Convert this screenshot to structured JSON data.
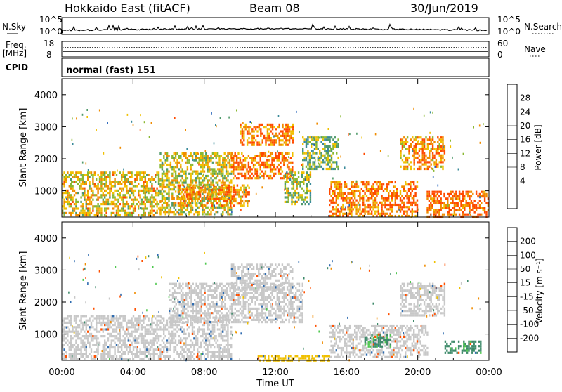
{
  "header": {
    "station": "Hokkaido East (fitACF)",
    "beam": "Beam 08",
    "date": "30/Jun/2019"
  },
  "strip": {
    "nsky_label": "N.Sky",
    "nsky_ticks": [
      "10^5",
      "10^0"
    ],
    "nsearch_label": "N.Search",
    "nsearch_ticks": [
      "10^5",
      "10^0"
    ],
    "freq_label": "Freq.",
    "freq_unit": "[MHz]",
    "freq_ticks": [
      "18",
      "8"
    ],
    "nave_label": "Nave",
    "nave_ticks": [
      "60",
      "0"
    ],
    "cpid_label": "CPID",
    "cpid_text": "normal (fast) 151"
  },
  "chart_data": [
    {
      "type": "heatmap",
      "panel": "power",
      "ylabel": "Slant Range [km]",
      "xlabel": "",
      "yticks": [
        1000,
        2000,
        3000,
        4000
      ],
      "ylim": [
        180,
        4500
      ],
      "xticks": [
        "00:00",
        "04:00",
        "08:00",
        "12:00",
        "16:00",
        "20:00",
        "00:00"
      ],
      "xlim_hours": [
        0,
        24
      ],
      "colorbar": {
        "label": "Power [dB]",
        "ticks": [
          "4",
          "8",
          "12",
          "16",
          "20",
          "24",
          "28"
        ],
        "colors": [
          "#0000ff",
          "#1f5fb8",
          "#3a8a9a",
          "#4f9a6a",
          "#8ab832",
          "#f0c000",
          "#f08c00",
          "#ff4a00",
          "#ff0000"
        ]
      },
      "regions": [
        {
          "x": [
            0.0,
            5.5
          ],
          "y": [
            250,
            1600
          ],
          "value": 22
        },
        {
          "x": [
            5.5,
            9.5
          ],
          "y": [
            300,
            2200
          ],
          "value": 20
        },
        {
          "x": [
            6.5,
            10.5
          ],
          "y": [
            500,
            1200
          ],
          "value": 26
        },
        {
          "x": [
            9.5,
            13.0
          ],
          "y": [
            1400,
            2200
          ],
          "value": 28
        },
        {
          "x": [
            10.0,
            13.0
          ],
          "y": [
            2400,
            3100
          ],
          "value": 27
        },
        {
          "x": [
            12.5,
            14.0
          ],
          "y": [
            600,
            1600
          ],
          "value": 18
        },
        {
          "x": [
            13.5,
            15.5
          ],
          "y": [
            1700,
            2700
          ],
          "value": 16
        },
        {
          "x": [
            15.0,
            20.0
          ],
          "y": [
            200,
            1300
          ],
          "value": 28
        },
        {
          "x": [
            19.0,
            21.5
          ],
          "y": [
            1700,
            2700
          ],
          "value": 26
        },
        {
          "x": [
            20.5,
            24.0
          ],
          "y": [
            200,
            1000
          ],
          "value": 30
        }
      ]
    },
    {
      "type": "heatmap",
      "panel": "velocity",
      "ylabel": "Slant Range [km]",
      "xlabel": "Time UT",
      "yticks": [
        1000,
        2000,
        3000,
        4000
      ],
      "ylim": [
        180,
        4500
      ],
      "xticks": [
        "00:00",
        "04:00",
        "08:00",
        "12:00",
        "16:00",
        "20:00",
        "00:00"
      ],
      "xlim_hours": [
        0,
        24
      ],
      "colorbar": {
        "label": "Velocity [m s⁻¹]",
        "ticks": [
          "200",
          "100",
          "50",
          "15",
          "-15",
          "-50",
          "-100",
          "-200"
        ],
        "colors": [
          "#2020c8",
          "#2f6cb0",
          "#3e8a6a",
          "#4fc84f",
          "#c8c8c8",
          "#f0c000",
          "#f08c00",
          "#ff5000",
          "#ff0000"
        ]
      },
      "regions": [
        {
          "x": [
            0.0,
            9.5
          ],
          "y": [
            250,
            1600
          ],
          "value": 0
        },
        {
          "x": [
            6.0,
            13.5
          ],
          "y": [
            1400,
            2600
          ],
          "value": 0
        },
        {
          "x": [
            9.5,
            13.0
          ],
          "y": [
            2400,
            3200
          ],
          "value": 0
        },
        {
          "x": [
            15.0,
            20.5
          ],
          "y": [
            250,
            1300
          ],
          "value": 0
        },
        {
          "x": [
            17.0,
            18.5
          ],
          "y": [
            600,
            1000
          ],
          "value": 60
        },
        {
          "x": [
            19.0,
            21.5
          ],
          "y": [
            1600,
            2600
          ],
          "value": 0
        },
        {
          "x": [
            21.5,
            23.5
          ],
          "y": [
            400,
            800
          ],
          "value": 60
        },
        {
          "x": [
            11.0,
            15.0
          ],
          "y": [
            200,
            350
          ],
          "value": -30
        }
      ]
    }
  ]
}
